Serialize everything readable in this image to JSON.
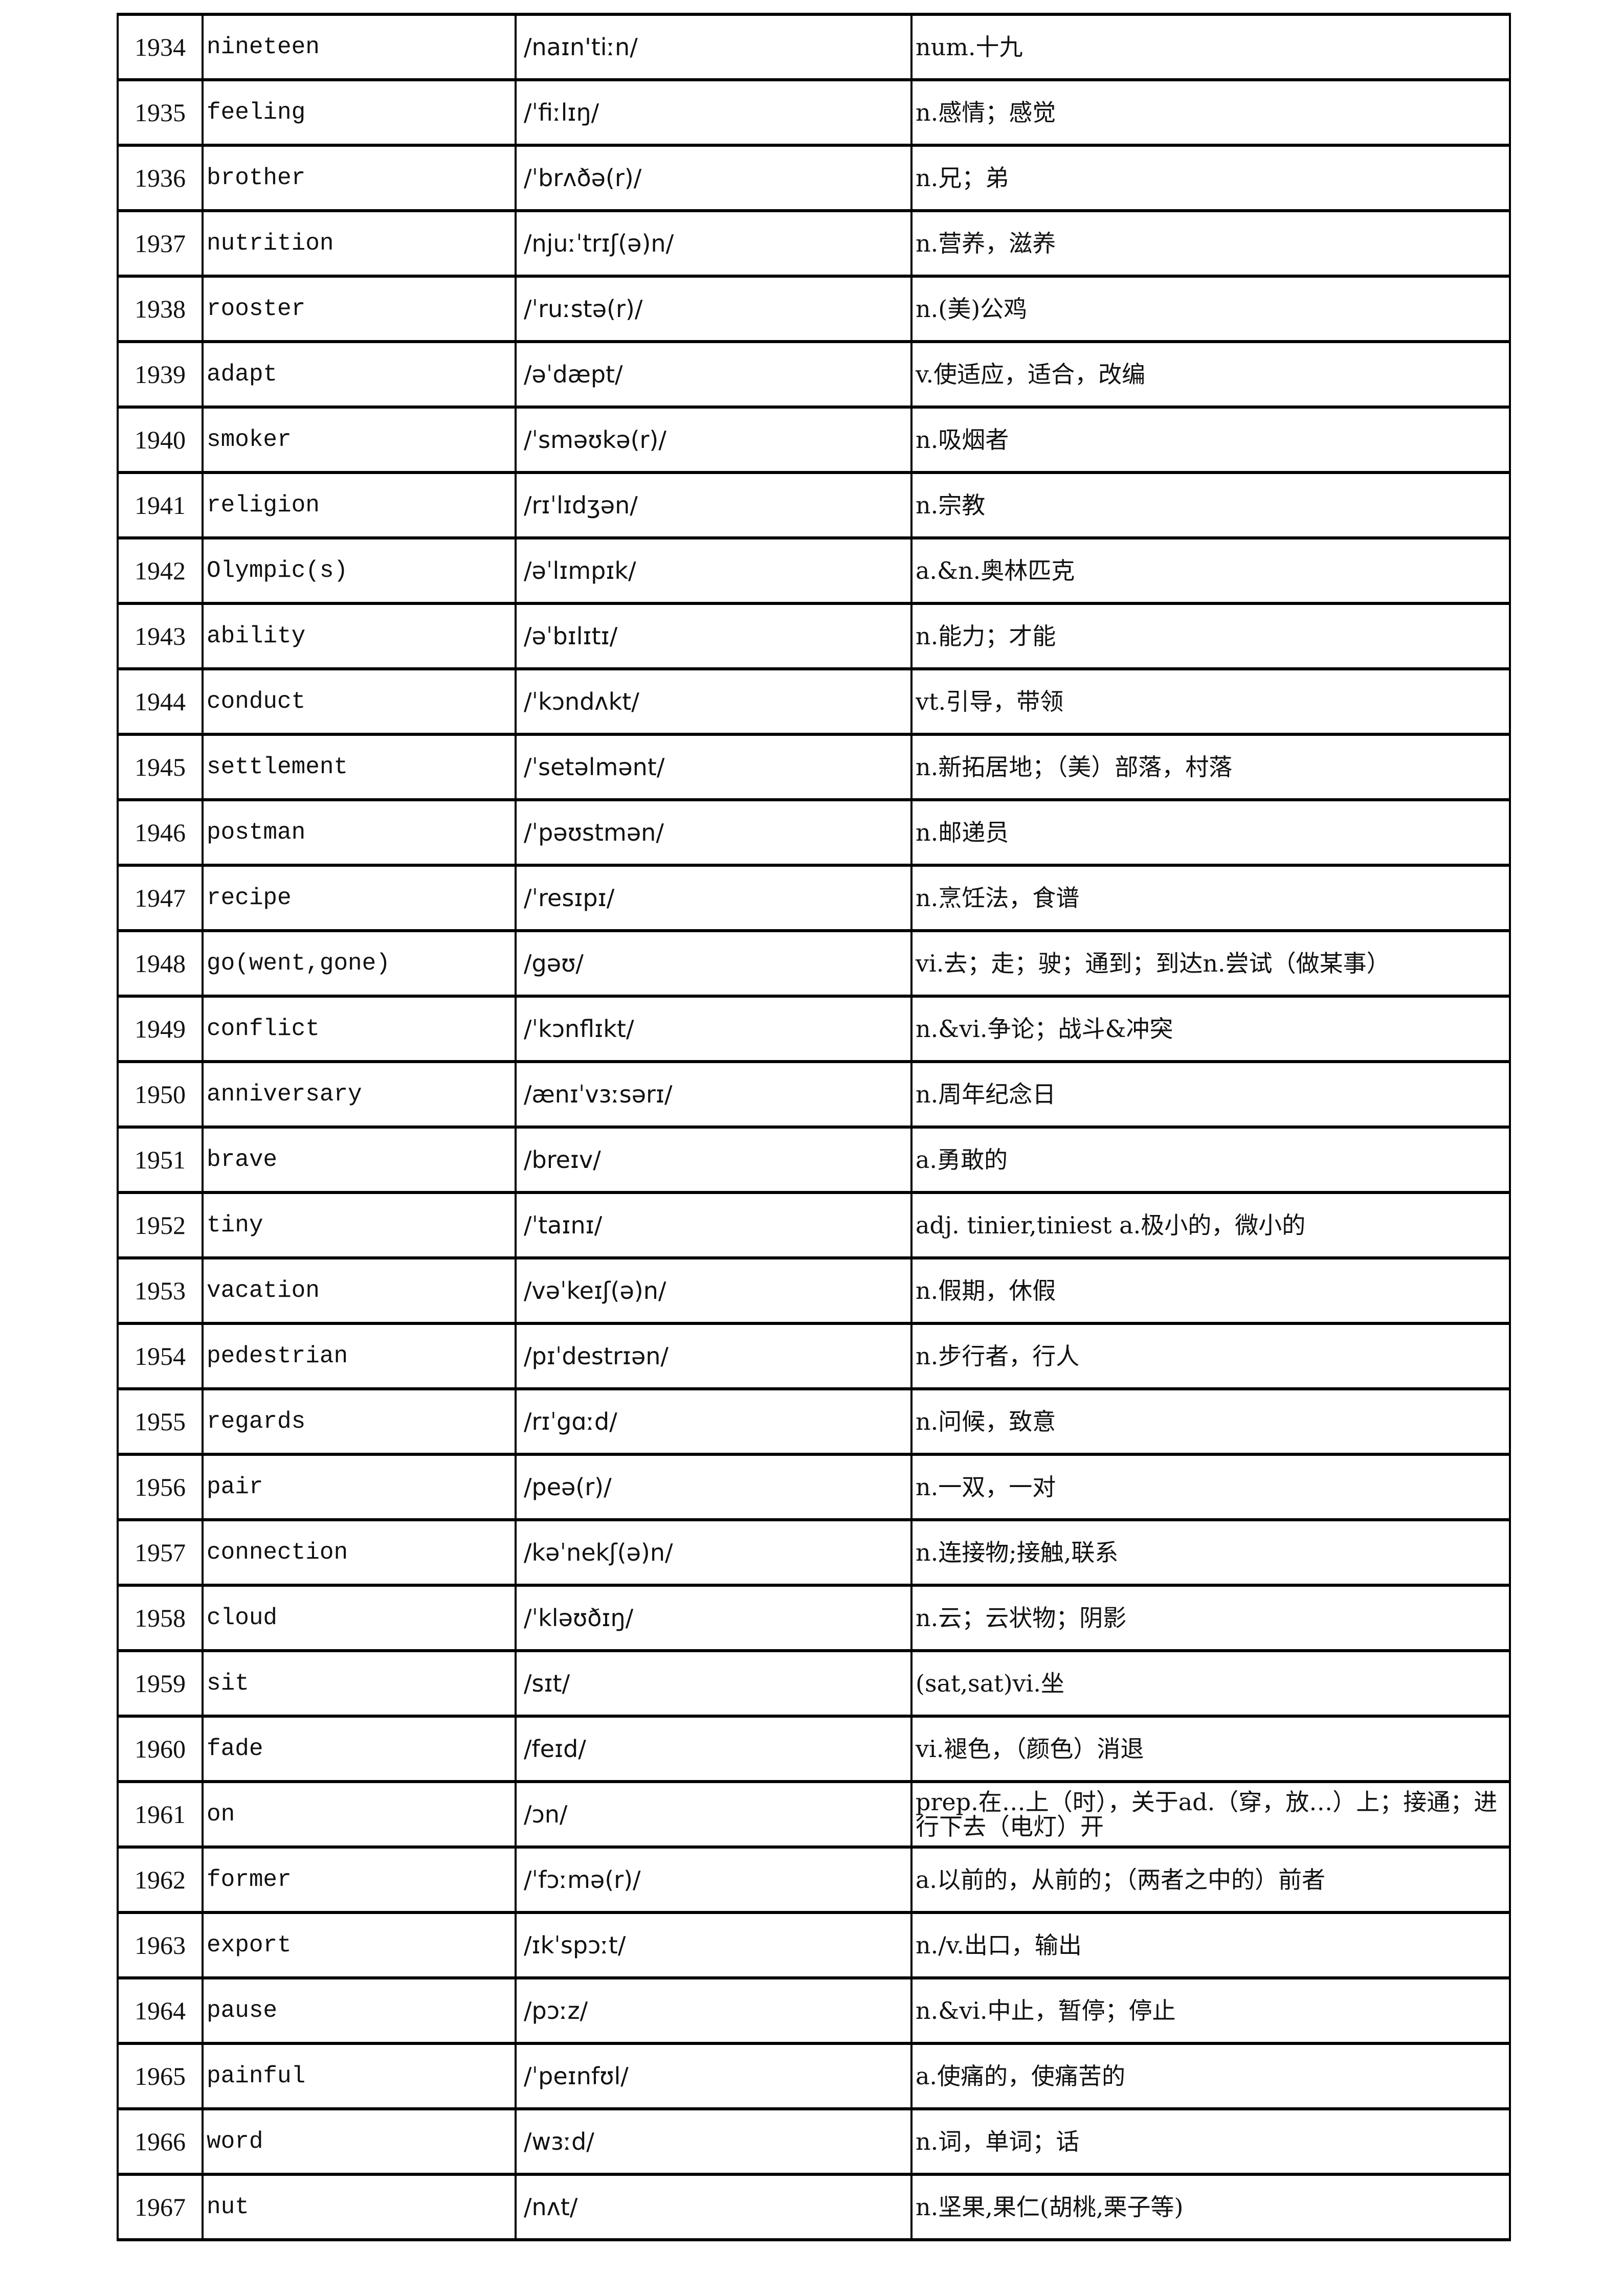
{
  "rows": [
    {
      "no": "1934",
      "word": "nineteen",
      "phonetic": "/naɪn'tiːn/",
      "meaning": "num.十九"
    },
    {
      "no": "1935",
      "word": "feeling",
      "phonetic": "/ˈfiːlɪŋ/",
      "meaning": "n.感情；感觉"
    },
    {
      "no": "1936",
      "word": "brother",
      "phonetic": "/ˈbrʌðə(r)/",
      "meaning": "n.兄；弟"
    },
    {
      "no": "1937",
      "word": "nutrition",
      "phonetic": "/njuːˈtrɪʃ(ə)n/",
      "meaning": "n.营养，滋养"
    },
    {
      "no": "1938",
      "word": "rooster",
      "phonetic": "/ˈruːstə(r)/",
      "meaning": "n.(美)公鸡"
    },
    {
      "no": "1939",
      "word": "adapt",
      "phonetic": "/əˈdæpt/",
      "meaning": "v.使适应，适合，改编"
    },
    {
      "no": "1940",
      "word": "smoker",
      "phonetic": "/ˈsməʊkə(r)/",
      "meaning": "n.吸烟者"
    },
    {
      "no": "1941",
      "word": "religion",
      "phonetic": "/rɪˈlɪdʒən/",
      "meaning": "n.宗教"
    },
    {
      "no": "1942",
      "word": "Olympic(s)",
      "phonetic": "/əˈlɪmpɪk/",
      "meaning": "a.&n.奥林匹克"
    },
    {
      "no": "1943",
      "word": "ability",
      "phonetic": "/əˈbɪlɪtɪ/",
      "meaning": "n.能力；才能"
    },
    {
      "no": "1944",
      "word": "conduct",
      "phonetic": "/ˈkɔndʌkt/",
      "meaning": "vt.引导，带领"
    },
    {
      "no": "1945",
      "word": "settlement",
      "phonetic": "/ˈsetəlmənt/",
      "meaning": "n.新拓居地；（美）部落，村落"
    },
    {
      "no": "1946",
      "word": "postman",
      "phonetic": "/ˈpəʊstmən/",
      "meaning": "n.邮递员"
    },
    {
      "no": "1947",
      "word": "recipe",
      "phonetic": "/ˈresɪpɪ/",
      "meaning": "n.烹饪法，食谱"
    },
    {
      "no": "1948",
      "word": "go(went,gone)",
      "phonetic": "/gəʊ/",
      "meaning": "vi.去；走；驶；通到；到达n.尝试（做某事）"
    },
    {
      "no": "1949",
      "word": "conflict",
      "phonetic": "/ˈkɔnflɪkt/",
      "meaning": "n.&vi.争论；战斗&冲突"
    },
    {
      "no": "1950",
      "word": "anniversary",
      "phonetic": "/ænɪˈvɜːsərɪ/",
      "meaning": "n.周年纪念日"
    },
    {
      "no": "1951",
      "word": "brave",
      "phonetic": "/breɪv/",
      "meaning": "a.勇敢的"
    },
    {
      "no": "1952",
      "word": "tiny",
      "phonetic": "/ˈtaɪnɪ/",
      "meaning": "adj.   tinier,tiniest   a.极小的，微小的"
    },
    {
      "no": "1953",
      "word": "vacation",
      "phonetic": "/vəˈkeɪʃ(ə)n/",
      "meaning": "n.假期，休假"
    },
    {
      "no": "1954",
      "word": "pedestrian",
      "phonetic": "/pɪˈdestrɪən/",
      "meaning": "n.步行者，行人"
    },
    {
      "no": "1955",
      "word": "regards",
      "phonetic": "/rɪˈgɑːd/",
      "meaning": "n.问候，致意"
    },
    {
      "no": "1956",
      "word": "pair",
      "phonetic": "/peə(r)/",
      "meaning": "n.一双，一对"
    },
    {
      "no": "1957",
      "word": "connection",
      "phonetic": "/kəˈnekʃ(ə)n/",
      "meaning": "n.连接物;接触,联系"
    },
    {
      "no": "1958",
      "word": "cloud",
      "phonetic": "/ˈkləʊðɪŋ/",
      "meaning": "n.云；云状物；阴影"
    },
    {
      "no": "1959",
      "word": "sit",
      "phonetic": "/sɪt/",
      "meaning": "(sat,sat)vi.坐"
    },
    {
      "no": "1960",
      "word": "fade",
      "phonetic": "/feɪd/",
      "meaning": "vi.褪色，（颜色）消退"
    },
    {
      "no": "1961",
      "word": "on",
      "phonetic": "/ɔn/",
      "meaning": "prep.在…上（时），关于ad.（穿，放…）上；接通；进行下去（电灯）开"
    },
    {
      "no": "1962",
      "word": "former",
      "phonetic": "/ˈfɔːmə(r)/",
      "meaning": "a.以前的，从前的；（两者之中的）前者"
    },
    {
      "no": "1963",
      "word": "export",
      "phonetic": "/ɪkˈspɔːt/",
      "meaning": "n./v.出口，输出"
    },
    {
      "no": "1964",
      "word": "pause",
      "phonetic": "/pɔːz/",
      "meaning": "n.&vi.中止，暂停；停止"
    },
    {
      "no": "1965",
      "word": "painful",
      "phonetic": "/ˈpeɪnfʊl/",
      "meaning": "a.使痛的，使痛苦的"
    },
    {
      "no": "1966",
      "word": "word",
      "phonetic": "/wɜːd/",
      "meaning": "n.词，单词；话"
    },
    {
      "no": "1967",
      "word": "nut",
      "phonetic": "/nʌt/",
      "meaning": "n.坚果,果仁(胡桃,栗子等)"
    }
  ]
}
